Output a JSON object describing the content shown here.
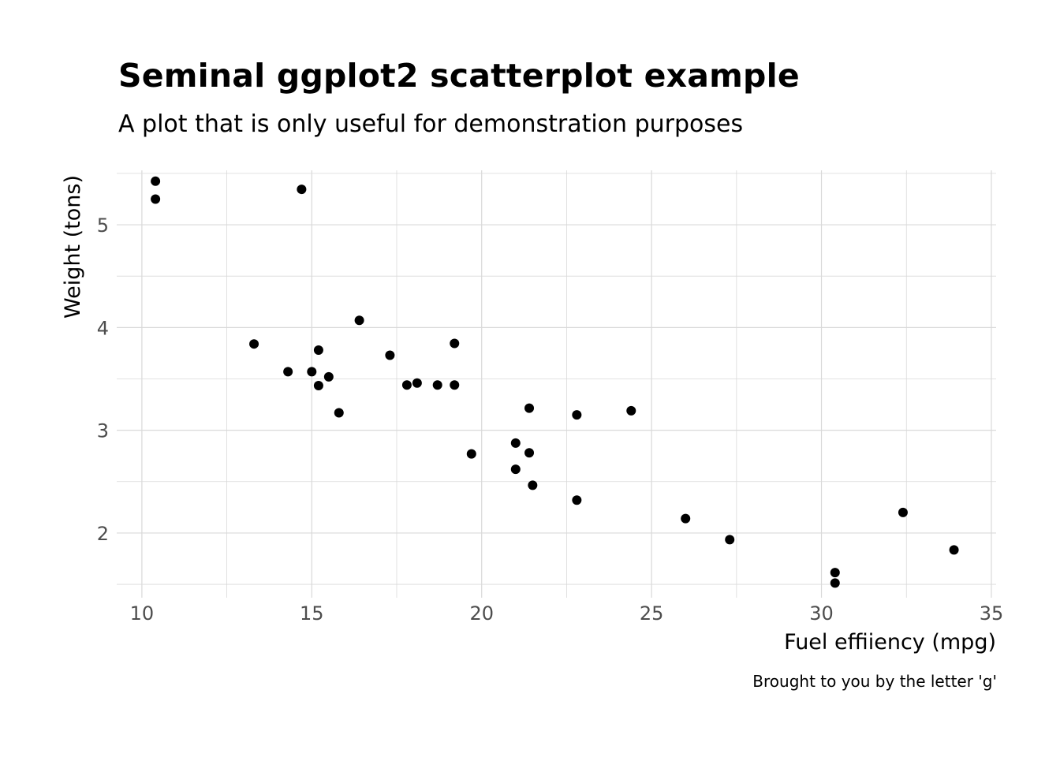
{
  "chart_data": {
    "type": "scatter",
    "title": "Seminal ggplot2 scatterplot example",
    "subtitle": "A plot that is only useful for demonstration purposes",
    "caption": "Brought to you by the letter 'g'",
    "xlabel": "Fuel effiiency (mpg)",
    "ylabel": "Weight (tons)",
    "xlim": [
      9.26,
      35.14
    ],
    "ylim": [
      1.37,
      5.53
    ],
    "x_ticks": [
      10,
      15,
      20,
      25,
      30,
      35
    ],
    "y_ticks": [
      2,
      3,
      4,
      5
    ],
    "x_tick_labels": [
      "10",
      "15",
      "20",
      "25",
      "30",
      "35"
    ],
    "y_tick_labels": [
      "2",
      "3",
      "4",
      "5"
    ],
    "grid": true,
    "point_color": "#000000",
    "grid_color": "#d9d9d9",
    "points": [
      {
        "x": 21.0,
        "y": 2.62
      },
      {
        "x": 21.0,
        "y": 2.875
      },
      {
        "x": 22.8,
        "y": 2.32
      },
      {
        "x": 21.4,
        "y": 3.215
      },
      {
        "x": 18.7,
        "y": 3.44
      },
      {
        "x": 18.1,
        "y": 3.46
      },
      {
        "x": 14.3,
        "y": 3.57
      },
      {
        "x": 24.4,
        "y": 3.19
      },
      {
        "x": 22.8,
        "y": 3.15
      },
      {
        "x": 19.2,
        "y": 3.44
      },
      {
        "x": 17.8,
        "y": 3.44
      },
      {
        "x": 16.4,
        "y": 4.07
      },
      {
        "x": 17.3,
        "y": 3.73
      },
      {
        "x": 15.2,
        "y": 3.78
      },
      {
        "x": 10.4,
        "y": 5.25
      },
      {
        "x": 10.4,
        "y": 5.424
      },
      {
        "x": 14.7,
        "y": 5.345
      },
      {
        "x": 32.4,
        "y": 2.2
      },
      {
        "x": 30.4,
        "y": 1.615
      },
      {
        "x": 33.9,
        "y": 1.835
      },
      {
        "x": 21.5,
        "y": 2.465
      },
      {
        "x": 15.5,
        "y": 3.52
      },
      {
        "x": 15.2,
        "y": 3.435
      },
      {
        "x": 13.3,
        "y": 3.84
      },
      {
        "x": 19.2,
        "y": 3.845
      },
      {
        "x": 27.3,
        "y": 1.935
      },
      {
        "x": 26.0,
        "y": 2.14
      },
      {
        "x": 30.4,
        "y": 1.513
      },
      {
        "x": 15.8,
        "y": 3.17
      },
      {
        "x": 19.7,
        "y": 2.77
      },
      {
        "x": 15.0,
        "y": 3.57
      },
      {
        "x": 21.4,
        "y": 2.78
      }
    ]
  }
}
